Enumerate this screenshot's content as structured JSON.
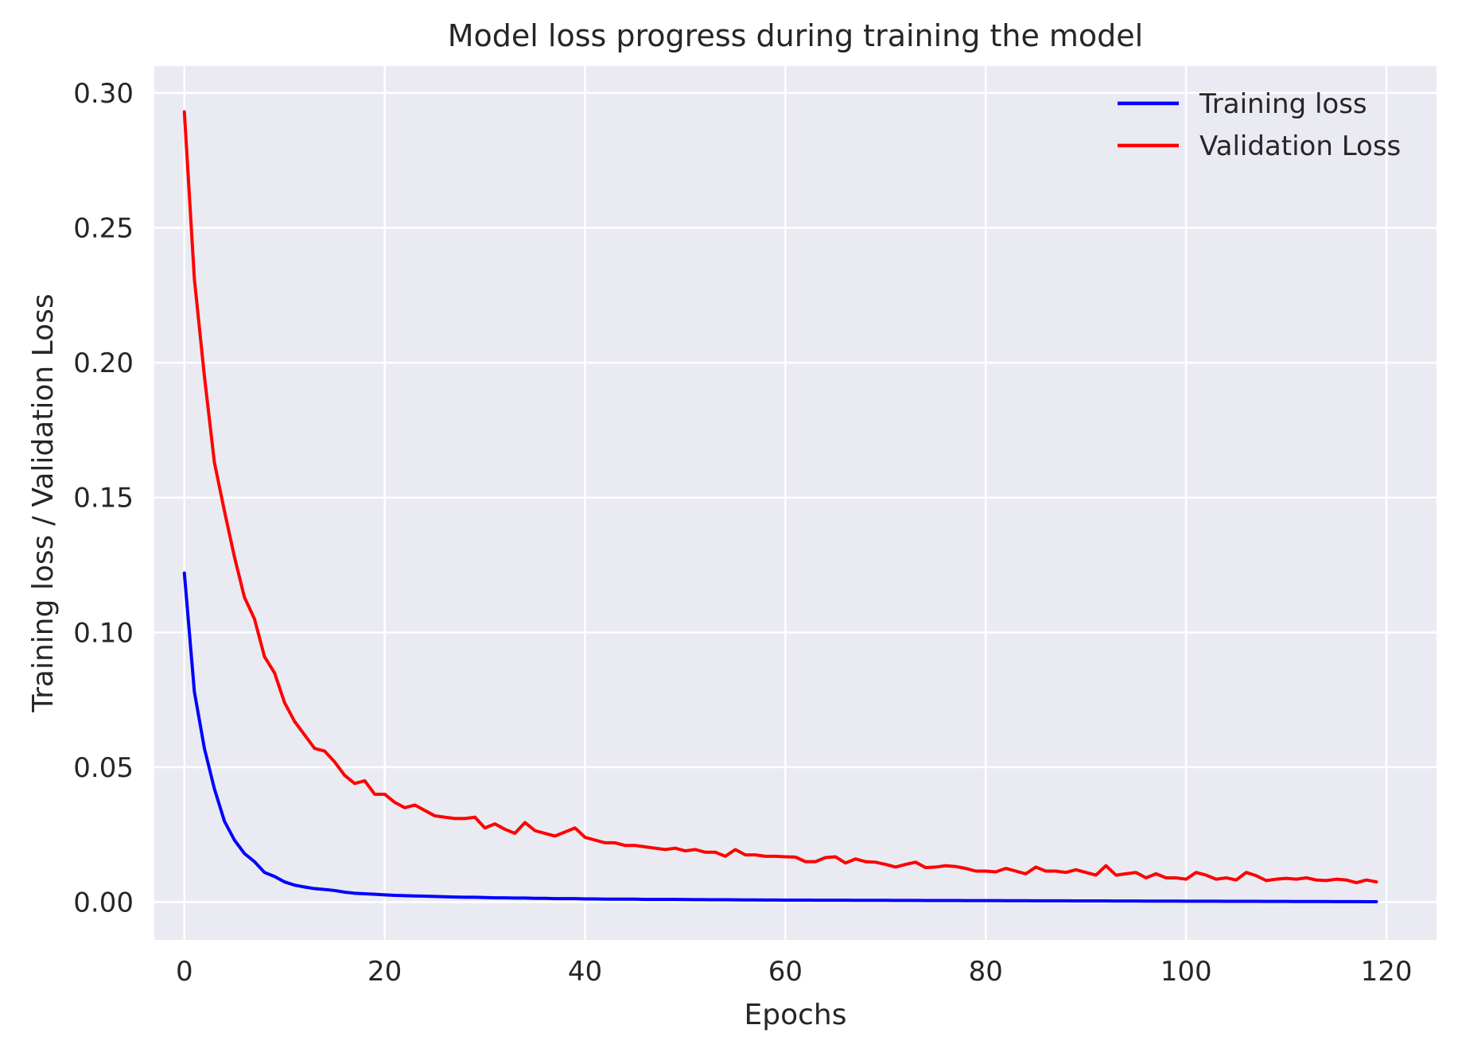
{
  "chart_data": {
    "type": "line",
    "title": "Model loss progress during training the model",
    "xlabel": "Epochs",
    "ylabel": "Training loss / Validation Loss",
    "xlim": [
      -3,
      125
    ],
    "ylim": [
      -0.014,
      0.31
    ],
    "xticks": [
      0,
      20,
      40,
      60,
      80,
      100,
      120
    ],
    "xtick_labels": [
      "0",
      "20",
      "40",
      "60",
      "80",
      "100",
      "120"
    ],
    "yticks": [
      0.0,
      0.05,
      0.1,
      0.15,
      0.2,
      0.25,
      0.3
    ],
    "ytick_labels": [
      "0.00",
      "0.05",
      "0.10",
      "0.15",
      "0.20",
      "0.25",
      "0.30"
    ],
    "grid": true,
    "legend_position": "top-right",
    "x": [
      0,
      1,
      2,
      3,
      4,
      5,
      6,
      7,
      8,
      9,
      10,
      11,
      12,
      13,
      14,
      15,
      16,
      17,
      18,
      19,
      20,
      21,
      22,
      23,
      24,
      25,
      26,
      27,
      28,
      29,
      30,
      31,
      32,
      33,
      34,
      35,
      36,
      37,
      38,
      39,
      40,
      41,
      42,
      43,
      44,
      45,
      46,
      47,
      48,
      49,
      50,
      51,
      52,
      53,
      54,
      55,
      56,
      57,
      58,
      59,
      60,
      61,
      62,
      63,
      64,
      65,
      66,
      67,
      68,
      69,
      70,
      71,
      72,
      73,
      74,
      75,
      76,
      77,
      78,
      79,
      80,
      81,
      82,
      83,
      84,
      85,
      86,
      87,
      88,
      89,
      90,
      91,
      92,
      93,
      94,
      95,
      96,
      97,
      98,
      99,
      100,
      101,
      102,
      103,
      104,
      105,
      106,
      107,
      108,
      109,
      110,
      111,
      112,
      113,
      114,
      115,
      116,
      117,
      118,
      119
    ],
    "series": [
      {
        "name": "Training loss",
        "color": "#0000ff",
        "values": [
          0.122,
          0.078,
          0.057,
          0.042,
          0.03,
          0.023,
          0.018,
          0.015,
          0.011,
          0.0095,
          0.0075,
          0.0063,
          0.0056,
          0.005,
          0.0047,
          0.0043,
          0.0037,
          0.0033,
          0.0031,
          0.0029,
          0.0027,
          0.0025,
          0.0024,
          0.0023,
          0.0022,
          0.0021,
          0.002,
          0.0019,
          0.0018,
          0.0018,
          0.0017,
          0.0016,
          0.0016,
          0.0015,
          0.0015,
          0.0014,
          0.0014,
          0.0013,
          0.0013,
          0.0013,
          0.0012,
          0.0012,
          0.0011,
          0.0011,
          0.0011,
          0.0011,
          0.001,
          0.001,
          0.001,
          0.001,
          0.00095,
          0.00093,
          0.00091,
          0.00089,
          0.00087,
          0.00085,
          0.00083,
          0.00081,
          0.00079,
          0.00077,
          0.00075,
          0.00074,
          0.00073,
          0.00072,
          0.00071,
          0.0007,
          0.00069,
          0.00068,
          0.00067,
          0.00066,
          0.00065,
          0.00064,
          0.00063,
          0.00062,
          0.00061,
          0.0006,
          0.00059,
          0.00058,
          0.00057,
          0.00056,
          0.00055,
          0.00054,
          0.00053,
          0.00052,
          0.00051,
          0.0005,
          0.00049,
          0.00048,
          0.00047,
          0.00046,
          0.00045,
          0.00044,
          0.00043,
          0.00042,
          0.00041,
          0.0004,
          0.00039,
          0.00038,
          0.00037,
          0.00036,
          0.00035,
          0.00034,
          0.00033,
          0.00032,
          0.00031,
          0.0003,
          0.00029,
          0.00028,
          0.00027,
          0.00026,
          0.00025,
          0.00024,
          0.00023,
          0.00022,
          0.00021,
          0.0002,
          0.00019,
          0.00018,
          0.00017,
          0.00016
        ]
      },
      {
        "name": "Validation Loss",
        "color": "#ff0000",
        "values": [
          0.293,
          0.231,
          0.195,
          0.163,
          0.145,
          0.128,
          0.113,
          0.105,
          0.091,
          0.085,
          0.074,
          0.067,
          0.062,
          0.057,
          0.056,
          0.052,
          0.047,
          0.044,
          0.045,
          0.04,
          0.04,
          0.037,
          0.035,
          0.036,
          0.034,
          0.032,
          0.0315,
          0.031,
          0.031,
          0.0315,
          0.0275,
          0.029,
          0.027,
          0.0255,
          0.0295,
          0.0265,
          0.0255,
          0.0245,
          0.026,
          0.0275,
          0.024,
          0.023,
          0.022,
          0.022,
          0.021,
          0.021,
          0.0205,
          0.02,
          0.0195,
          0.02,
          0.019,
          0.0195,
          0.0185,
          0.0185,
          0.017,
          0.0195,
          0.0175,
          0.0175,
          0.017,
          0.017,
          0.0168,
          0.0167,
          0.015,
          0.015,
          0.0165,
          0.0168,
          0.0145,
          0.016,
          0.015,
          0.0148,
          0.014,
          0.013,
          0.014,
          0.0148,
          0.0128,
          0.013,
          0.0135,
          0.0132,
          0.0125,
          0.0115,
          0.0115,
          0.0112,
          0.0125,
          0.0115,
          0.0105,
          0.013,
          0.0115,
          0.0115,
          0.011,
          0.012,
          0.011,
          0.01,
          0.0135,
          0.01,
          0.0105,
          0.011,
          0.009,
          0.0105,
          0.009,
          0.009,
          0.0085,
          0.011,
          0.01,
          0.0085,
          0.009,
          0.0082,
          0.011,
          0.0098,
          0.008,
          0.0085,
          0.0088,
          0.0085,
          0.009,
          0.0082,
          0.008,
          0.0085,
          0.0082,
          0.0072,
          0.0082,
          0.0075
        ]
      }
    ]
  }
}
